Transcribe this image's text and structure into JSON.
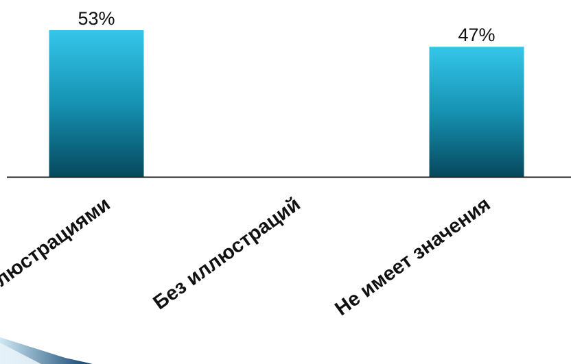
{
  "chart_data": {
    "type": "bar",
    "categories": [
      "С иллюстрациями",
      "Без иллюстраций",
      "Не имеет значения"
    ],
    "values": [
      53,
      0,
      47
    ],
    "value_labels": [
      "53%",
      "",
      "47%"
    ],
    "unit": "%",
    "title": "",
    "xlabel": "",
    "ylabel": "",
    "ylim": [
      0,
      60
    ],
    "grid": false,
    "legend": "none",
    "bar_gradient": {
      "top": "#35c6ea",
      "middle": "#1692b2",
      "bottom": "#06485c"
    }
  }
}
